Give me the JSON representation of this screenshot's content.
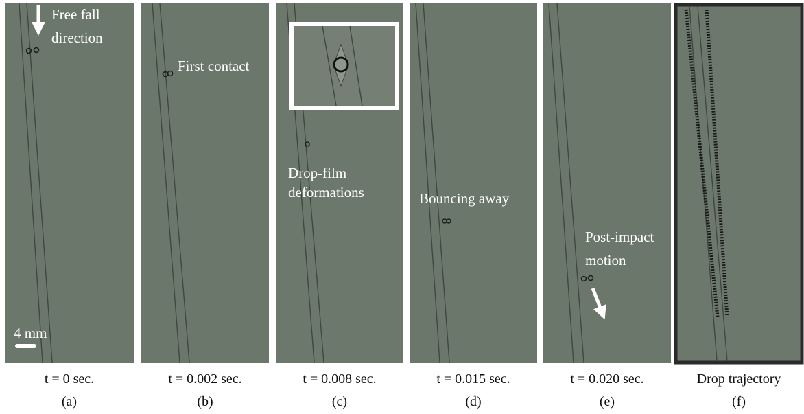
{
  "scale_bar": "4 mm",
  "panels": [
    {
      "annotation": [
        "Free fall",
        "direction"
      ],
      "time": "t = 0 sec.",
      "label": "(a)"
    },
    {
      "annotation": [
        "First contact"
      ],
      "time": "t = 0.002 sec.",
      "label": "(b)"
    },
    {
      "annotation": [
        "Drop-film",
        "deformations"
      ],
      "time": "t = 0.008 sec.",
      "label": "(c)"
    },
    {
      "annotation": [
        "Bouncing away"
      ],
      "time": "t = 0.015 sec.",
      "label": "(d)"
    },
    {
      "annotation": [
        "Post-impact",
        "motion"
      ],
      "time": "t = 0.020 sec.",
      "label": "(e)"
    },
    {
      "annotation": [],
      "time": "Drop trajectory",
      "label": "(f)"
    }
  ]
}
